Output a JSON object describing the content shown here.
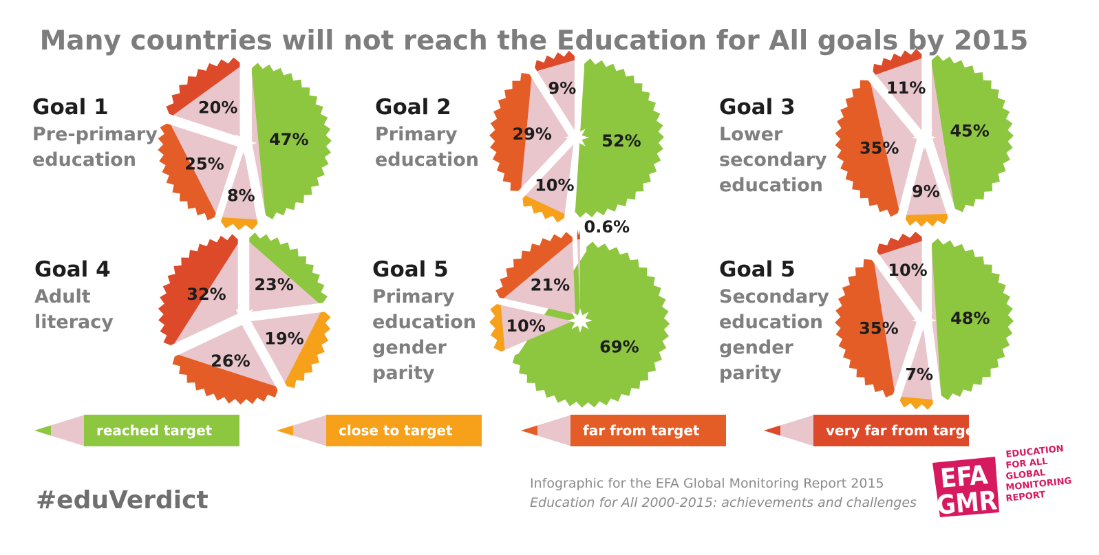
{
  "title": "Many countries will not reach the Education for All goals by 2015",
  "colors": {
    "reached": "#8dc63f",
    "close": "#f7a11a",
    "far": "#e55d26",
    "very_far": "#dc4a2a",
    "fill": "#e9c6cc",
    "logo": "#d7195f"
  },
  "chart_data": [
    {
      "type": "pie",
      "goal": "Goal 1",
      "subtitle": [
        "Pre-primary",
        "education"
      ],
      "slices": [
        {
          "label": "47%",
          "value": 47,
          "status": "reached"
        },
        {
          "label": "8%",
          "value": 8,
          "status": "close"
        },
        {
          "label": "25%",
          "value": 25,
          "status": "far"
        },
        {
          "label": "20%",
          "value": 20,
          "status": "very_far"
        }
      ]
    },
    {
      "type": "pie",
      "goal": "Goal 2",
      "subtitle": [
        "Primary",
        "education"
      ],
      "slices": [
        {
          "label": "52%",
          "value": 52,
          "status": "reached"
        },
        {
          "label": "10%",
          "value": 10,
          "status": "close"
        },
        {
          "label": "29%",
          "value": 29,
          "status": "far"
        },
        {
          "label": "9%",
          "value": 9,
          "status": "very_far"
        }
      ]
    },
    {
      "type": "pie",
      "goal": "Goal 3",
      "subtitle": [
        "Lower",
        "secondary",
        "education"
      ],
      "slices": [
        {
          "label": "45%",
          "value": 45,
          "status": "reached"
        },
        {
          "label": "9%",
          "value": 9,
          "status": "close"
        },
        {
          "label": "35%",
          "value": 35,
          "status": "far"
        },
        {
          "label": "11%",
          "value": 11,
          "status": "very_far"
        }
      ]
    },
    {
      "type": "pie",
      "goal": "Goal 4",
      "subtitle": [
        "Adult",
        "literacy"
      ],
      "slices": [
        {
          "label": "23%",
          "value": 23,
          "status": "reached"
        },
        {
          "label": "19%",
          "value": 19,
          "status": "close"
        },
        {
          "label": "26%",
          "value": 26,
          "status": "far"
        },
        {
          "label": "32%",
          "value": 32,
          "status": "very_far"
        }
      ]
    },
    {
      "type": "pie",
      "goal": "Goal 5",
      "subtitle": [
        "Primary",
        "education",
        "gender",
        "parity"
      ],
      "slices": [
        {
          "label": "69%",
          "value": 69,
          "status": "reached"
        },
        {
          "label": "10%",
          "value": 10,
          "status": "close"
        },
        {
          "label": "21%",
          "value": 21,
          "status": "far"
        },
        {
          "label": "0.6%",
          "value": 0.6,
          "status": "very_far"
        }
      ]
    },
    {
      "type": "pie",
      "goal": "Goal 5",
      "subtitle": [
        "Secondary",
        "education",
        "gender",
        "parity"
      ],
      "slices": [
        {
          "label": "48%",
          "value": 48,
          "status": "reached"
        },
        {
          "label": "7%",
          "value": 7,
          "status": "close"
        },
        {
          "label": "35%",
          "value": 35,
          "status": "far"
        },
        {
          "label": "10%",
          "value": 10,
          "status": "very_far"
        }
      ]
    }
  ],
  "legend": [
    {
      "label": "reached target",
      "status": "reached"
    },
    {
      "label": "close to target",
      "status": "close"
    },
    {
      "label": "far from target",
      "status": "far"
    },
    {
      "label": "very far from target",
      "status": "very_far"
    }
  ],
  "hashtag": "#eduVerdict",
  "footer": {
    "line1": "Infographic for the EFA Global Monitoring Report 2015",
    "line2": "Education for All 2000-2015: achievements and challenges"
  },
  "logo": {
    "top": "EFA",
    "bottom": "GMR",
    "side": [
      "EDUCATION",
      "FOR ALL",
      "GLOBAL",
      "MONITORING",
      "REPORT"
    ]
  }
}
